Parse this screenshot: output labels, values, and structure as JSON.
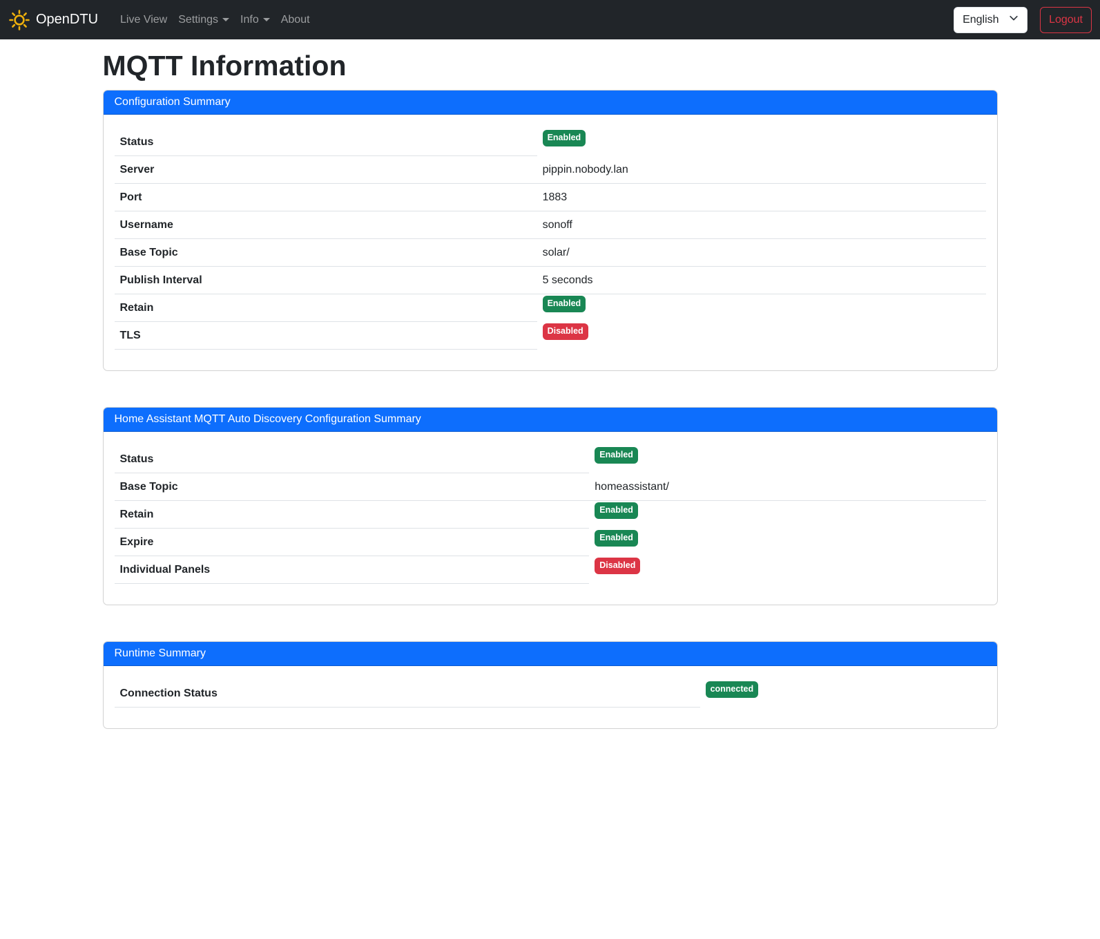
{
  "navbar": {
    "brand": "OpenDTU",
    "items": [
      {
        "label": "Live View",
        "dropdown": false
      },
      {
        "label": "Settings",
        "dropdown": true
      },
      {
        "label": "Info",
        "dropdown": true
      },
      {
        "label": "About",
        "dropdown": false
      }
    ],
    "language_selector": {
      "selected": "English"
    },
    "logout_label": "Logout"
  },
  "page": {
    "title": "MQTT Information"
  },
  "icons": {
    "brand": "sun-icon",
    "language_chevron": "chevron-down-icon",
    "dropdown_caret": "caret-down-icon"
  },
  "colors": {
    "primary": "#0d6efd",
    "success": "#198754",
    "danger": "#dc3545",
    "navbar_bg": "#212529",
    "brand_icon": "#eeb00c",
    "row_border": "#dee2e6"
  },
  "cards": [
    {
      "title": "Configuration Summary",
      "rows": [
        {
          "label": "Status",
          "type": "badge",
          "value": "Enabled",
          "variant": "success"
        },
        {
          "label": "Server",
          "type": "text",
          "value": "pippin.nobody.lan"
        },
        {
          "label": "Port",
          "type": "text",
          "value": "1883"
        },
        {
          "label": "Username",
          "type": "text",
          "value": "sonoff"
        },
        {
          "label": "Base Topic",
          "type": "text",
          "value": "solar/"
        },
        {
          "label": "Publish Interval",
          "type": "text",
          "value": "5 seconds"
        },
        {
          "label": "Retain",
          "type": "badge",
          "value": "Enabled",
          "variant": "success"
        },
        {
          "label": "TLS",
          "type": "badge",
          "value": "Disabled",
          "variant": "danger"
        }
      ]
    },
    {
      "title": "Home Assistant MQTT Auto Discovery Configuration Summary",
      "rows": [
        {
          "label": "Status",
          "type": "badge",
          "value": "Enabled",
          "variant": "success"
        },
        {
          "label": "Base Topic",
          "type": "text",
          "value": "homeassistant/"
        },
        {
          "label": "Retain",
          "type": "badge",
          "value": "Enabled",
          "variant": "success"
        },
        {
          "label": "Expire",
          "type": "badge",
          "value": "Enabled",
          "variant": "success"
        },
        {
          "label": "Individual Panels",
          "type": "badge",
          "value": "Disabled",
          "variant": "danger"
        }
      ]
    },
    {
      "title": "Runtime Summary",
      "rows": [
        {
          "label": "Connection Status",
          "type": "badge",
          "value": "connected",
          "variant": "success"
        }
      ]
    }
  ]
}
